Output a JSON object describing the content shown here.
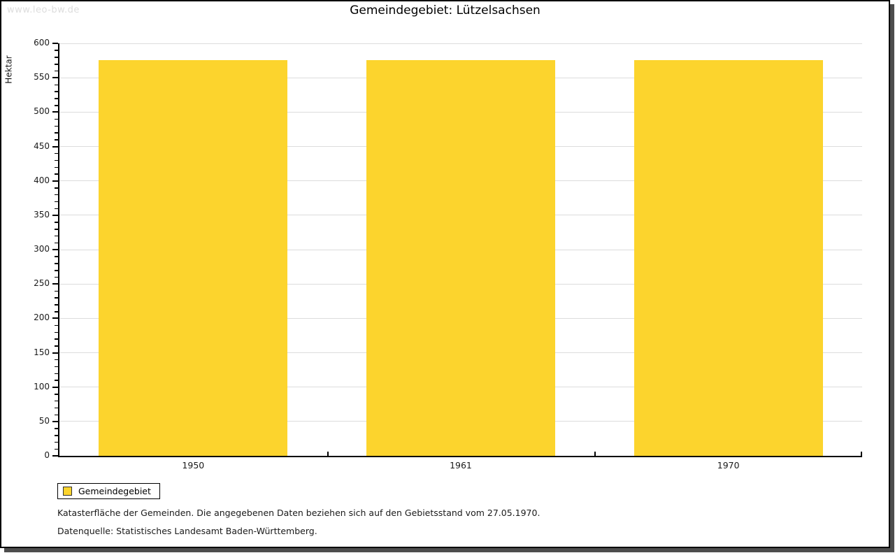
{
  "watermark": "www.leo-bw.de",
  "header": {
    "title": "Gemeindegebiet: Lützelsachsen"
  },
  "chart_data": {
    "type": "bar",
    "title": "Gemeindegebiet: Lützelsachsen",
    "categories": [
      "1950",
      "1961",
      "1970"
    ],
    "series": [
      {
        "name": "Gemeindegebiet",
        "values": [
          576,
          576,
          576
        ],
        "color": "#FCD42D"
      }
    ],
    "xlabel": "",
    "ylabel": "Hektar",
    "ylim": [
      0,
      600
    ],
    "ytick_step": 50,
    "minor_tick_step": 10,
    "grid": true,
    "gridline_color": "#dcdcdc",
    "legend_position": "bottom-left"
  },
  "legend": {
    "items": [
      {
        "label": "Gemeindegebiet",
        "color": "#FCD42D"
      }
    ]
  },
  "footer": {
    "line1": "Katasterfläche der Gemeinden. Die angegebenen Daten beziehen sich auf den Gebietsstand vom 27.05.1970.",
    "line2": "Datenquelle: Statistisches Landesamt Baden-Württemberg."
  }
}
